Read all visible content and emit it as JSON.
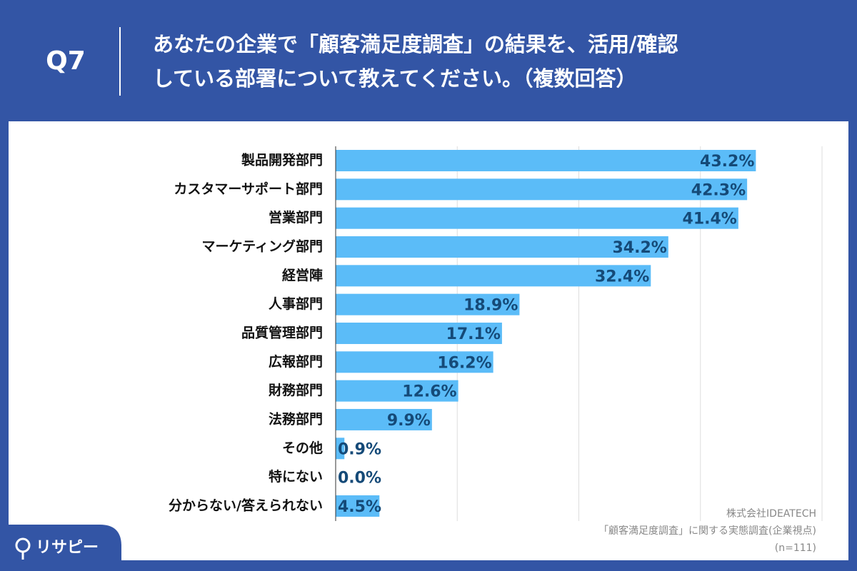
{
  "chart_data": {
    "type": "bar",
    "orientation": "horizontal",
    "question": "Q7",
    "title": [
      "あなたの企業で「顧客満足度調査」の結果を、活用/確認",
      "している部署について教えてください。（複数回答）"
    ],
    "categories": [
      "製品開発部門",
      "カスタマーサポート部門",
      "営業部門",
      "マーケティング部門",
      "経営陣",
      "人事部門",
      "品質管理部門",
      "広報部門",
      "財務部門",
      "法務部門",
      "その他",
      "特にない",
      "分からない/答えられない"
    ],
    "values": [
      43.2,
      42.3,
      41.4,
      34.2,
      32.4,
      18.9,
      17.1,
      16.2,
      12.6,
      9.9,
      0.9,
      0.0,
      4.5
    ],
    "value_labels": [
      "43.2%",
      "42.3%",
      "41.4%",
      "34.2%",
      "32.4%",
      "18.9%",
      "17.1%",
      "16.2%",
      "12.6%",
      "9.9%",
      "0.9%",
      "0.0%",
      "4.5%"
    ],
    "color": "#5bbcf8",
    "xlim": [
      0,
      50
    ],
    "xticks": [
      0,
      12.5,
      25,
      37.5,
      50
    ],
    "grid": true,
    "source": [
      "株式会社IDEATECH",
      "「顧客満足度調査」に関する実態調査(企業視点)",
      "(n=111)"
    ],
    "logo": "リサピー"
  }
}
